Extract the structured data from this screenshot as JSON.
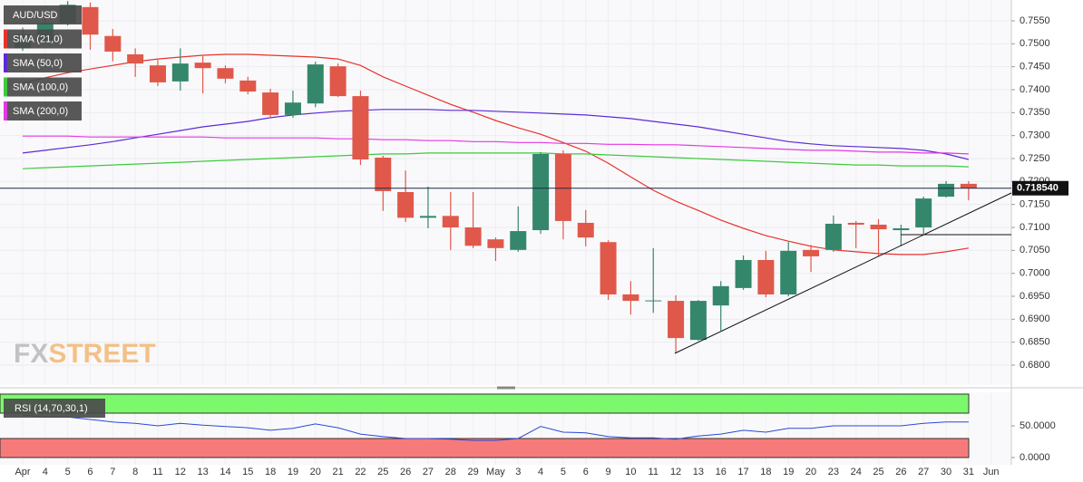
{
  "chart_data": [
    {
      "type": "candlestick",
      "name": "AUD/USD",
      "categories": [
        "Apr",
        "4",
        "5",
        "6",
        "7",
        "8",
        "11",
        "12",
        "13",
        "14",
        "15",
        "18",
        "19",
        "20",
        "21",
        "22",
        "25",
        "26",
        "27",
        "28",
        "29",
        "May",
        "3",
        "4",
        "5",
        "6",
        "9",
        "10",
        "11",
        "12",
        "13",
        "16",
        "17",
        "18",
        "19",
        "20",
        "23",
        "24",
        "25",
        "26",
        "27",
        "30",
        "31",
        "Jun"
      ],
      "open": [
        0.749,
        0.7505,
        0.7545,
        0.758,
        0.7517,
        0.7477,
        0.7453,
        0.7418,
        0.7459,
        0.7447,
        0.742,
        0.7394,
        0.7345,
        0.737,
        0.7451,
        0.7386,
        0.7252,
        0.7177,
        0.7121,
        0.7125,
        0.71,
        0.7074,
        0.7051,
        0.7094,
        0.726,
        0.711,
        0.7068,
        0.6954,
        0.694,
        0.694,
        0.6855,
        0.693,
        0.6968,
        0.7029,
        0.6954,
        0.7051,
        0.7051,
        0.711,
        0.7106,
        0.7094,
        0.71,
        0.7167,
        0.7195,
        null
      ],
      "high": [
        0.7535,
        0.756,
        0.7593,
        0.759,
        0.7532,
        0.749,
        0.7465,
        0.749,
        0.7473,
        0.7453,
        0.7428,
        0.7402,
        0.7398,
        0.7461,
        0.7457,
        0.7398,
        0.7256,
        0.7224,
        0.7189,
        0.7177,
        0.7177,
        0.7078,
        0.7146,
        0.7264,
        0.7268,
        0.7138,
        0.7072,
        0.6983,
        0.7055,
        0.6952,
        0.6942,
        0.6983,
        0.7039,
        0.7049,
        0.7068,
        0.7062,
        0.7126,
        0.7114,
        0.7118,
        0.7106,
        0.7167,
        0.7201,
        0.7201,
        null
      ],
      "low": [
        0.7485,
        0.75,
        0.754,
        0.7487,
        0.7462,
        0.7428,
        0.7408,
        0.7398,
        0.7392,
        0.7414,
        0.739,
        0.7339,
        0.7339,
        0.7362,
        0.7384,
        0.7236,
        0.7136,
        0.7112,
        0.7098,
        0.7051,
        0.7055,
        0.7027,
        0.7047,
        0.7086,
        0.7074,
        0.7059,
        0.6942,
        0.691,
        0.6914,
        0.6826,
        0.6853,
        0.6875,
        0.6964,
        0.6948,
        0.695,
        0.7003,
        0.7047,
        0.7055,
        0.7037,
        0.7059,
        0.7086,
        0.7165,
        0.7159,
        null
      ],
      "close": [
        0.752,
        0.7545,
        0.7585,
        0.752,
        0.7483,
        0.7457,
        0.7416,
        0.7457,
        0.7447,
        0.7424,
        0.7396,
        0.7345,
        0.7372,
        0.7455,
        0.7386,
        0.7248,
        0.7179,
        0.7121,
        0.7125,
        0.71,
        0.706,
        0.7055,
        0.7092,
        0.726,
        0.7114,
        0.7078,
        0.6954,
        0.694,
        0.6941,
        0.6859,
        0.694,
        0.6972,
        0.7029,
        0.6954,
        0.7049,
        0.7037,
        0.7108,
        0.7106,
        0.7096,
        0.7098,
        0.7163,
        0.7195,
        0.7185,
        null
      ],
      "up_color": "#35876b",
      "down_color": "#e0584a",
      "series": [
        {
          "name": "SMA (21,0)",
          "color": "#e8322b",
          "values": [
            0.7414,
            0.7426,
            0.7437,
            0.7445,
            0.7453,
            0.7461,
            0.7467,
            0.7471,
            0.7475,
            0.7477,
            0.7477,
            0.7475,
            0.7473,
            0.7471,
            0.7467,
            0.7453,
            0.7428,
            0.7408,
            0.7388,
            0.7368,
            0.7351,
            0.7333,
            0.7317,
            0.7303,
            0.7285,
            0.7266,
            0.724,
            0.721,
            0.7181,
            0.7157,
            0.7137,
            0.7116,
            0.7098,
            0.7082,
            0.707,
            0.7059,
            0.7051,
            0.7047,
            0.7043,
            0.7041,
            0.7041,
            0.7047,
            0.7055,
            null
          ]
        },
        {
          "name": "SMA (50,0)",
          "color": "#5b2bd6",
          "values": [
            0.7262,
            0.7268,
            0.7274,
            0.728,
            0.7287,
            0.7295,
            0.7303,
            0.7311,
            0.7319,
            0.7325,
            0.7331,
            0.7339,
            0.7345,
            0.7349,
            0.7353,
            0.7355,
            0.7357,
            0.7357,
            0.7357,
            0.7355,
            0.7355,
            0.7353,
            0.7351,
            0.7349,
            0.7347,
            0.7345,
            0.7341,
            0.7337,
            0.7331,
            0.7325,
            0.7319,
            0.7311,
            0.7303,
            0.7295,
            0.7287,
            0.7282,
            0.7278,
            0.7276,
            0.7274,
            0.7272,
            0.7268,
            0.726,
            0.7248,
            null
          ]
        },
        {
          "name": "SMA (100,0)",
          "color": "#3ccb3c",
          "values": [
            0.7228,
            0.723,
            0.7232,
            0.7234,
            0.7236,
            0.7238,
            0.724,
            0.7242,
            0.7244,
            0.7246,
            0.7248,
            0.725,
            0.7252,
            0.7254,
            0.7256,
            0.7258,
            0.726,
            0.726,
            0.7262,
            0.7262,
            0.7262,
            0.7262,
            0.7262,
            0.7262,
            0.726,
            0.726,
            0.7258,
            0.7256,
            0.7254,
            0.7252,
            0.725,
            0.7248,
            0.7246,
            0.7244,
            0.7242,
            0.724,
            0.7238,
            0.7236,
            0.7236,
            0.7234,
            0.7234,
            0.7234,
            0.7232,
            null
          ]
        },
        {
          "name": "SMA (200,0)",
          "color": "#e436e4",
          "values": [
            0.7299,
            0.7299,
            0.7299,
            0.7297,
            0.7297,
            0.7297,
            0.7297,
            0.7297,
            0.7297,
            0.7295,
            0.7295,
            0.7295,
            0.7295,
            0.7295,
            0.7293,
            0.7293,
            0.7291,
            0.7291,
            0.7289,
            0.7289,
            0.7287,
            0.7287,
            0.7285,
            0.7285,
            0.7283,
            0.7283,
            0.7281,
            0.7281,
            0.728,
            0.728,
            0.7278,
            0.7276,
            0.7274,
            0.7272,
            0.727,
            0.7268,
            0.7268,
            0.7266,
            0.7264,
            0.7264,
            0.7262,
            0.7262,
            0.726,
            null
          ]
        }
      ],
      "last_price": {
        "value": 0.71854,
        "label": "0.718540"
      },
      "ylim": [
        0.75954,
        0.67566
      ],
      "yticks": [
        {
          "value": 0.68,
          "label": "0.6800"
        },
        {
          "value": 0.685,
          "label": "0.6850"
        },
        {
          "value": 0.69,
          "label": "0.6900"
        },
        {
          "value": 0.695,
          "label": "0.6950"
        },
        {
          "value": 0.7,
          "label": "0.7000"
        },
        {
          "value": 0.705,
          "label": "0.7050"
        },
        {
          "value": 0.71,
          "label": "0.7100"
        },
        {
          "value": 0.715,
          "label": "0.7150"
        },
        {
          "value": 0.72,
          "label": "0.7200"
        },
        {
          "value": 0.725,
          "label": "0.7250"
        },
        {
          "value": 0.73,
          "label": "0.7300"
        },
        {
          "value": 0.735,
          "label": "0.7350"
        },
        {
          "value": 0.74,
          "label": "0.7400"
        },
        {
          "value": 0.745,
          "label": "0.7450"
        },
        {
          "value": 0.75,
          "label": "0.7500"
        },
        {
          "value": 0.755,
          "label": "0.7550"
        }
      ],
      "grid": true,
      "watermark": {
        "left": "FX",
        "right": "STREET"
      }
    },
    {
      "type": "line",
      "name": "RSI (14,70,30,1)",
      "color": "#2b48d8",
      "values": [
        67,
        64,
        64,
        60,
        56,
        54,
        50,
        54,
        51,
        49,
        47,
        43,
        46,
        53,
        47,
        37,
        33,
        30,
        30,
        29,
        27,
        27,
        30,
        49,
        40,
        39,
        33,
        31,
        31,
        29,
        34,
        37,
        43,
        40,
        46,
        46,
        50,
        50,
        50,
        50,
        54,
        56,
        56,
        null
      ],
      "overbought": 70,
      "oversold": 30,
      "ylim": [
        100,
        0
      ],
      "yticks": [
        {
          "value": 0,
          "label": "0.0000"
        },
        {
          "value": 50,
          "label": "50.0000"
        }
      ]
    }
  ]
}
